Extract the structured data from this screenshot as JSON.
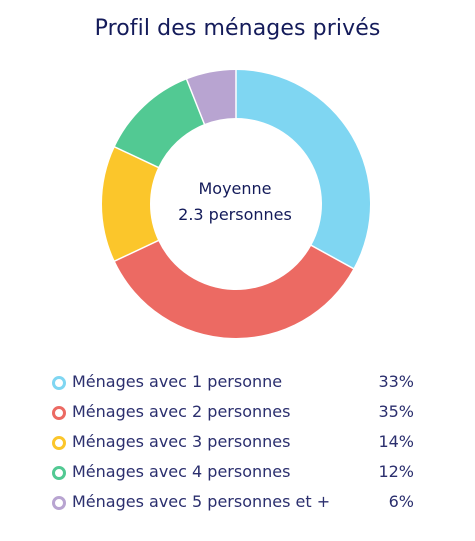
{
  "chart_data": {
    "type": "pie",
    "title": "Profil des ménages privés",
    "center": {
      "line1": "Moyenne",
      "line2": "2.3 personnes"
    },
    "categories": [
      "Ménages avec 1 personne",
      "Ménages avec 2 personnes",
      "Ménages avec 3 personnes",
      "Ménages avec 4 personnes",
      "Ménages avec 5 personnes et +"
    ],
    "values": [
      33,
      35,
      14,
      12,
      6
    ],
    "value_labels": [
      "33%",
      "35%",
      "14%",
      "12%",
      "6%"
    ],
    "colors": [
      "#7fd6f2",
      "#ec6a63",
      "#fbc62b",
      "#52c993",
      "#b8a4d1"
    ],
    "legend_position": "bottom"
  }
}
